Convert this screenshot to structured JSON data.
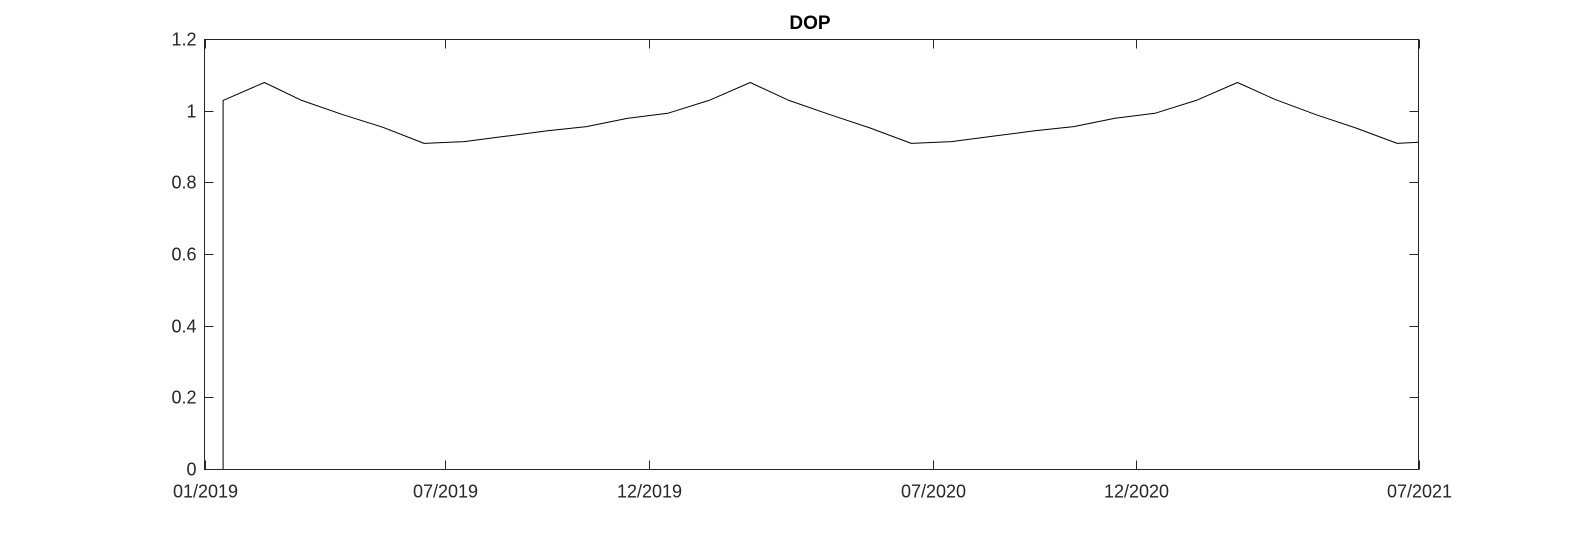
{
  "chart_data": {
    "type": "line",
    "title": "DOP",
    "xlabel": "",
    "ylabel": "",
    "xlim": [
      "2019-01-01",
      "2021-07-01"
    ],
    "ylim": [
      0,
      1.2
    ],
    "grid": false,
    "legend": "none",
    "x_ticks": [
      {
        "value": "2019-01-01",
        "label": "01/2019"
      },
      {
        "value": "2019-07-01",
        "label": "07/2019"
      },
      {
        "value": "2019-12-01",
        "label": "12/2019"
      },
      {
        "value": "2020-07-01",
        "label": "07/2020"
      },
      {
        "value": "2020-12-01",
        "label": "12/2020"
      },
      {
        "value": "2021-07-01",
        "label": "07/2021"
      }
    ],
    "y_ticks": [
      {
        "value": 0,
        "label": "0"
      },
      {
        "value": 0.2,
        "label": "0.2"
      },
      {
        "value": 0.4,
        "label": "0.4"
      },
      {
        "value": 0.6,
        "label": "0.6"
      },
      {
        "value": 0.8,
        "label": "0.8"
      },
      {
        "value": 1,
        "label": "1"
      },
      {
        "value": 1.2,
        "label": "1.2"
      }
    ],
    "series": [
      {
        "color": "#000000",
        "x": [
          "2019-01-01",
          "2019-01-15",
          "2019-01-15",
          "2019-02-15",
          "2019-03-15",
          "2019-04-15",
          "2019-05-15",
          "2019-06-15",
          "2019-07-15",
          "2019-08-15",
          "2019-09-15",
          "2019-10-15",
          "2019-11-15",
          "2019-12-15",
          "2020-01-15",
          "2020-02-15",
          "2020-03-15",
          "2020-04-15",
          "2020-05-15",
          "2020-06-15",
          "2020-07-15",
          "2020-08-15",
          "2020-09-15",
          "2020-10-15",
          "2020-11-15",
          "2020-12-15",
          "2021-01-15",
          "2021-02-15",
          "2021-03-15",
          "2021-04-15",
          "2021-05-15",
          "2021-06-15",
          "2021-07-01"
        ],
        "values": [
          0,
          0,
          1.03,
          1.08,
          1.03,
          0.99,
          0.955,
          0.91,
          0.915,
          0.93,
          0.945,
          0.957,
          0.98,
          0.994,
          1.03,
          1.08,
          1.03,
          0.99,
          0.953,
          0.91,
          0.915,
          0.93,
          0.945,
          0.957,
          0.98,
          0.994,
          1.03,
          1.08,
          1.033,
          0.99,
          0.953,
          0.91,
          0.913
        ]
      }
    ]
  }
}
